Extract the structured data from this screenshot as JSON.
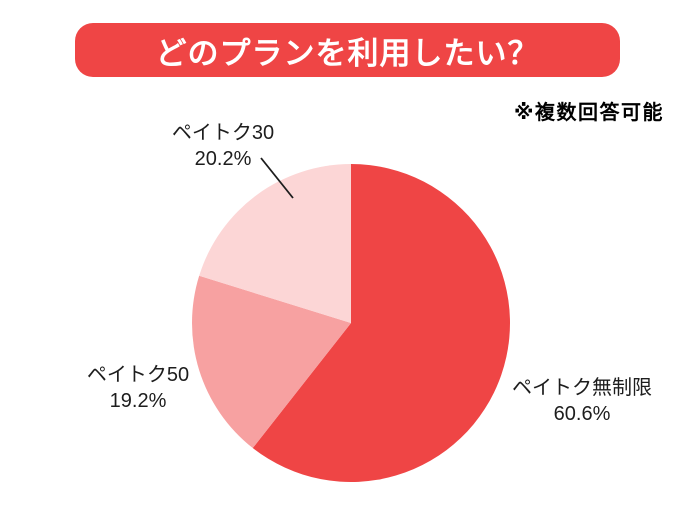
{
  "header": {
    "title": "どのプランを利用したい？",
    "banner_color": "#EF4545",
    "title_color": "#FFFFFF"
  },
  "note": {
    "text": "※複数回答可能",
    "color": "#000000"
  },
  "chart_data": {
    "type": "pie",
    "title": "どのプランを利用したい？",
    "start_angle": "12-oclock",
    "direction": "clockwise",
    "legend": "none",
    "annotation_note": "※複数回答可能",
    "slices": [
      {
        "key": "unlimited",
        "label": "ペイトク無制限",
        "value": 60.6,
        "display_percent": "60.6%",
        "color": "#EF4545"
      },
      {
        "key": "paytoku50",
        "label": "ペイトク50",
        "value": 19.2,
        "display_percent": "19.2%",
        "color": "#F7A1A1"
      },
      {
        "key": "paytoku30",
        "label": "ペイトク30",
        "value": 20.2,
        "display_percent": "20.2%",
        "color": "#FCD6D6"
      }
    ]
  }
}
